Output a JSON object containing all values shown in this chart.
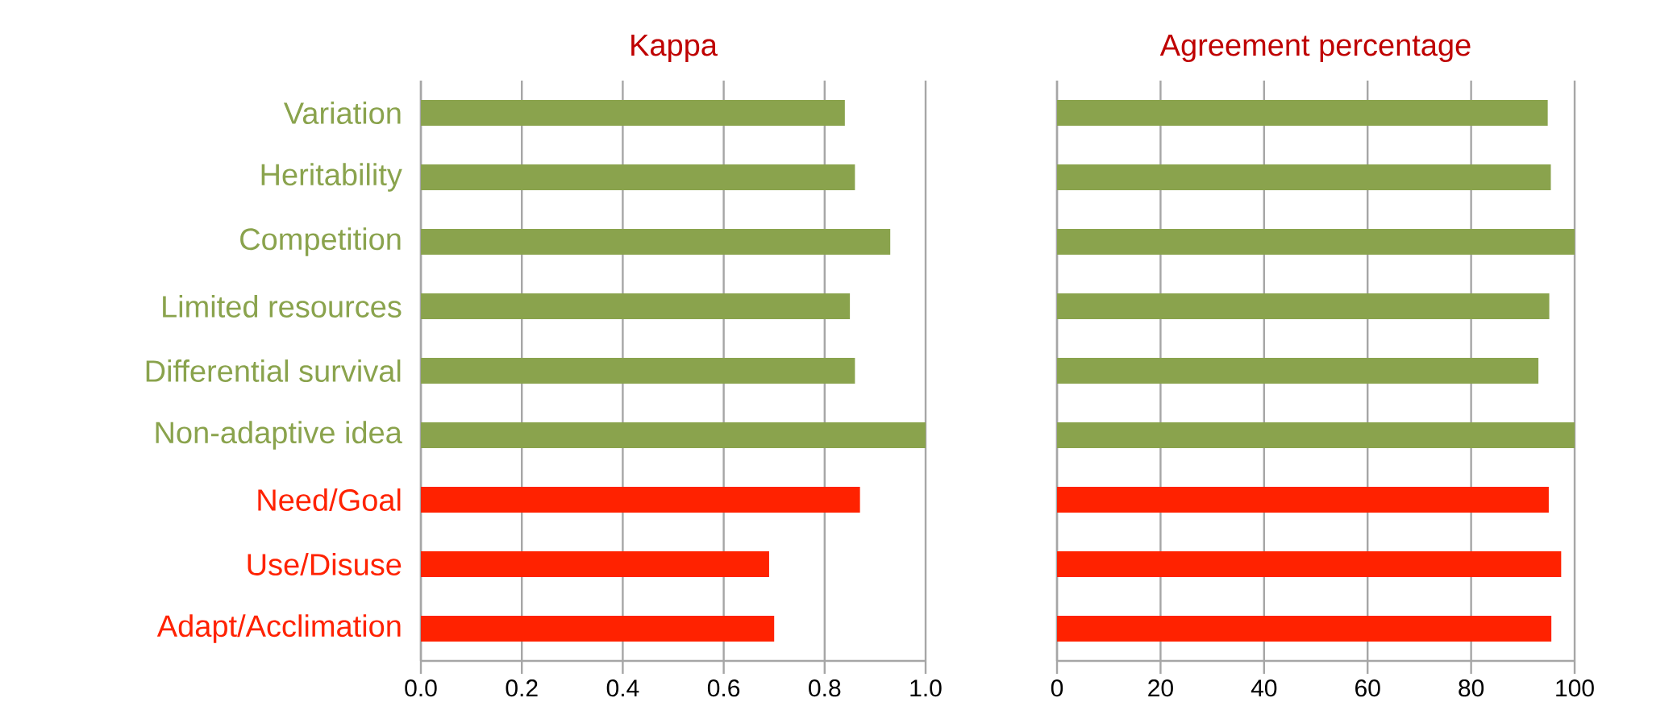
{
  "chart_data": [
    {
      "type": "bar",
      "orientation": "horizontal",
      "title": "Kappa",
      "categories": [
        "Variation",
        "Heritability",
        "Competition",
        "Limited resources",
        "Differential survival",
        "Non-adaptive idea",
        "Need/Goal",
        "Use/Disuse",
        "Adapt/Acclimation"
      ],
      "values": [
        0.84,
        0.86,
        0.93,
        0.85,
        0.86,
        1.0,
        0.87,
        0.69,
        0.7
      ],
      "colors": [
        "#8aa34d",
        "#8aa34d",
        "#8aa34d",
        "#8aa34d",
        "#8aa34d",
        "#8aa34d",
        "#ff2200",
        "#ff2200",
        "#ff2200"
      ],
      "xlim": [
        0,
        1
      ],
      "xticks": [
        {
          "value": 0,
          "label": "0.0"
        },
        {
          "value": 0.2,
          "label": "0.2"
        },
        {
          "value": 0.4,
          "label": "0.4"
        },
        {
          "value": 0.6,
          "label": "0.6"
        },
        {
          "value": 0.8,
          "label": "0.8"
        },
        {
          "value": 1,
          "label": "1.0"
        }
      ],
      "grid": "x"
    },
    {
      "type": "bar",
      "orientation": "horizontal",
      "title": "Agreement percentage",
      "categories": [
        null,
        null,
        null,
        null,
        null,
        null,
        null,
        null,
        null
      ],
      "values": [
        94.8,
        95.4,
        100,
        95.1,
        93.0,
        100,
        95.0,
        97.4,
        95.5
      ],
      "colors": [
        "#8aa34d",
        "#8aa34d",
        "#8aa34d",
        "#8aa34d",
        "#8aa34d",
        "#8aa34d",
        "#ff2200",
        "#ff2200",
        "#ff2200"
      ],
      "xlim": [
        0,
        100
      ],
      "xticks": [
        0,
        20,
        40,
        60,
        80,
        100
      ],
      "grid": "x",
      "tick_labels": "x"
    }
  ]
}
